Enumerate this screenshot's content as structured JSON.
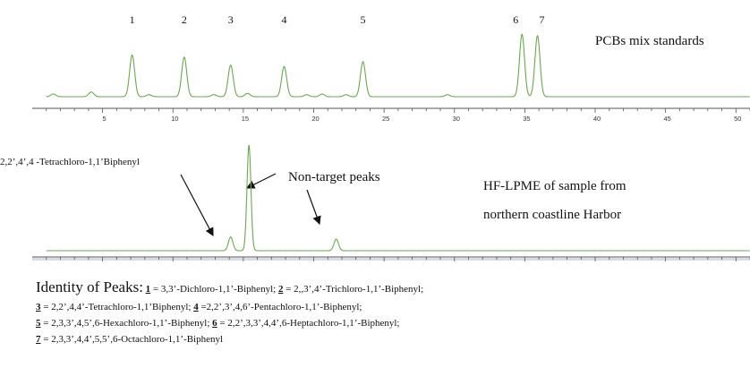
{
  "chart_data": [
    {
      "type": "line",
      "title": "PCBs mix standards",
      "xlim": [
        0,
        51
      ],
      "x_ticks": [
        "5",
        "10",
        "15",
        "20",
        "25",
        "30",
        "35",
        "40",
        "45",
        "50"
      ],
      "peak_labels": [
        "1",
        "2",
        "3",
        "4",
        "5",
        "6",
        "7"
      ],
      "peaks": [
        {
          "label": "1",
          "x": 7.1,
          "height": 0.62
        },
        {
          "label": "2",
          "x": 10.8,
          "height": 0.59
        },
        {
          "label": "3",
          "x": 14.1,
          "height": 0.47
        },
        {
          "label": "4",
          "x": 17.9,
          "height": 0.45
        },
        {
          "label": "5",
          "x": 23.5,
          "height": 0.52
        },
        {
          "label": "6",
          "x": 34.8,
          "height": 0.93
        },
        {
          "label": "7",
          "x": 35.9,
          "height": 0.91
        }
      ],
      "minor_peaks": [
        {
          "x": 1.5,
          "height": 0.04
        },
        {
          "x": 4.2,
          "height": 0.07
        },
        {
          "x": 8.3,
          "height": 0.03
        },
        {
          "x": 12.9,
          "height": 0.03
        },
        {
          "x": 15.3,
          "height": 0.05
        },
        {
          "x": 19.5,
          "height": 0.03
        },
        {
          "x": 20.6,
          "height": 0.04
        },
        {
          "x": 22.3,
          "height": 0.03
        },
        {
          "x": 29.5,
          "height": 0.03
        }
      ],
      "color": "#6aa84f"
    },
    {
      "type": "line",
      "title_lines": [
        "HF-LPME of sample from",
        "northern coastline Harbor"
      ],
      "xlim": [
        0,
        51
      ],
      "peaks": [
        {
          "x": 14.1,
          "height": 0.13
        },
        {
          "x": 15.4,
          "height": 1.0
        },
        {
          "x": 21.6,
          "height": 0.11
        }
      ],
      "annotations": {
        "tetrachloro_label": "2,2’,4’,4 -Tetrachloro-1,1’Biphenyl",
        "non_target_label": "Non-target peaks"
      },
      "color": "#6aa84f"
    }
  ],
  "legend": {
    "heading": "Identity of Peaks:",
    "entries": [
      {
        "num": "1",
        "text": " = 3,3’-Dichloro-1,1’-Biphenyl; "
      },
      {
        "num": "2",
        "text": " = 2,,3’,4’-Trichloro-1,1’-Biphenyl;"
      },
      {
        "num": "3",
        "text": " = 2,2’,4,4’-Tetrachloro-1,1’Biphenyl; "
      },
      {
        "num": "4",
        "text": " =2,2’,3’,4,6’-Pentachloro-1,1’-Biphenyl;"
      },
      {
        "num": "5",
        "text": " = 2,3,3’,4,5’,6-Hexachloro-1,1’-Biphenyl; "
      },
      {
        "num": "6",
        "text": " = 2,2’,3,3’,4,4’,6-Heptachloro-1,1’-Biphenyl;"
      },
      {
        "num": "7",
        "text": " = 2,3,3’,4,4’,5,5’,6-Octachloro-1,1’-Biphenyl"
      }
    ]
  }
}
